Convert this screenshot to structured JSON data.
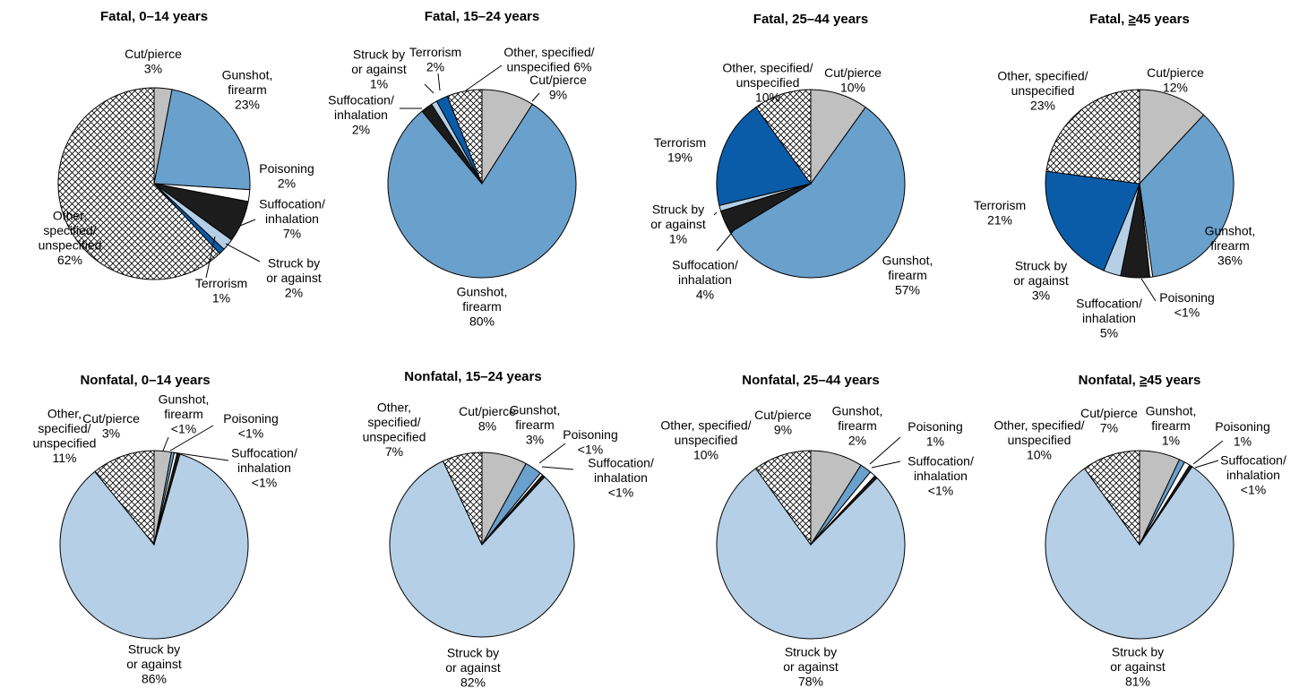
{
  "colors": {
    "Cut/pierce": "#c0c0c0",
    "Gunshot, firearm": "#6aa0cc",
    "Poisoning": "#ffffff",
    "Suffocation/inhalation": "#1c1c1c",
    "Struck by or against": "#b5cfe6",
    "Terrorism": "#0a5ca8",
    "Other, specified/unspecified": "hatch"
  },
  "chart_data": [
    {
      "type": "pie",
      "title": "Fatal, 0–14 years",
      "slices": [
        {
          "category": "Cut/pierce",
          "value": 3,
          "label_lines": [
            "Cut/pierce",
            "3%"
          ]
        },
        {
          "category": "Gunshot, firearm",
          "value": 23,
          "label_lines": [
            "Gunshot,",
            "firearm",
            "23%"
          ]
        },
        {
          "category": "Poisoning",
          "value": 2,
          "label_lines": [
            "Poisoning",
            "2%"
          ]
        },
        {
          "category": "Suffocation/inhalation",
          "value": 7,
          "label_lines": [
            "Suffocation/",
            "inhalation",
            "7%"
          ]
        },
        {
          "category": "Struck by or against",
          "value": 2,
          "label_lines": [
            "Struck by",
            "or against",
            "2%"
          ]
        },
        {
          "category": "Terrorism",
          "value": 1,
          "label_lines": [
            "Terrorism",
            "1%"
          ]
        },
        {
          "category": "Other, specified/unspecified",
          "value": 62,
          "label_lines": [
            "Other,",
            "specified/",
            "unspecified",
            "62%"
          ]
        }
      ]
    },
    {
      "type": "pie",
      "title": "Fatal, 15–24 years",
      "slices": [
        {
          "category": "Cut/pierce",
          "value": 9,
          "label_lines": [
            "Cut/pierce",
            "9%"
          ]
        },
        {
          "category": "Gunshot, firearm",
          "value": 80,
          "label_lines": [
            "Gunshot,",
            "firearm",
            "80%"
          ]
        },
        {
          "category": "Suffocation/inhalation",
          "value": 2,
          "label_lines": [
            "Suffocation/",
            "inhalation",
            "2%"
          ]
        },
        {
          "category": "Struck by or against",
          "value": 1,
          "label_lines": [
            "Struck by",
            "or against",
            "1%"
          ]
        },
        {
          "category": "Terrorism",
          "value": 2,
          "label_lines": [
            "Terrorism",
            "2%"
          ]
        },
        {
          "category": "Other, specified/unspecified",
          "value": 6,
          "label_lines": [
            "Other, specified/",
            "unspecified 6%"
          ]
        }
      ]
    },
    {
      "type": "pie",
      "title": "Fatal, 25–44 years",
      "slices": [
        {
          "category": "Cut/pierce",
          "value": 10,
          "label_lines": [
            "Cut/pierce",
            "10%"
          ]
        },
        {
          "category": "Gunshot, firearm",
          "value": 57,
          "label_lines": [
            "Gunshot,",
            "firearm",
            "57%"
          ]
        },
        {
          "category": "Suffocation/inhalation",
          "value": 4,
          "label_lines": [
            "Suffocation/",
            "inhalation",
            "4%"
          ]
        },
        {
          "category": "Struck by or against",
          "value": 1,
          "label_lines": [
            "Struck by",
            "or against",
            "1%"
          ]
        },
        {
          "category": "Terrorism",
          "value": 19,
          "label_lines": [
            "Terrorism",
            "19%"
          ]
        },
        {
          "category": "Other, specified/unspecified",
          "value": 10,
          "label_lines": [
            "Other, specified/",
            "unspecified",
            "10%"
          ]
        }
      ]
    },
    {
      "type": "pie",
      "title": "Fatal, ≥45 years",
      "title_parts": [
        "Fatal, ",
        "≥",
        "45 years"
      ],
      "slices": [
        {
          "category": "Cut/pierce",
          "value": 12,
          "label_lines": [
            "Cut/pierce",
            "12%"
          ]
        },
        {
          "category": "Gunshot, firearm",
          "value": 36,
          "label_lines": [
            "Gunshot,",
            "firearm",
            "36%"
          ]
        },
        {
          "category": "Poisoning",
          "value": 0.5,
          "label_lines": [
            "Poisoning",
            "<1%"
          ]
        },
        {
          "category": "Suffocation/inhalation",
          "value": 5,
          "label_lines": [
            "Suffocation/",
            "inhalation",
            "5%"
          ]
        },
        {
          "category": "Struck by or against",
          "value": 3,
          "label_lines": [
            "Struck by",
            "or against",
            "3%"
          ]
        },
        {
          "category": "Terrorism",
          "value": 21,
          "label_lines": [
            "Terrorism",
            "21%"
          ]
        },
        {
          "category": "Other, specified/unspecified",
          "value": 23,
          "label_lines": [
            "Other, specified/",
            "unspecified",
            "23%"
          ]
        }
      ]
    },
    {
      "type": "pie",
      "title": "Nonfatal, 0–14 years",
      "slices": [
        {
          "category": "Cut/pierce",
          "value": 3,
          "label_lines": [
            "Cut/pierce",
            "3%"
          ]
        },
        {
          "category": "Gunshot, firearm",
          "value": 0.5,
          "label_lines": [
            "Gunshot,",
            "firearm",
            "<1%"
          ]
        },
        {
          "category": "Poisoning",
          "value": 0.5,
          "label_lines": [
            "Poisoning",
            "<1%"
          ]
        },
        {
          "category": "Suffocation/inhalation",
          "value": 0.5,
          "label_lines": [
            "Suffocation/",
            "inhalation",
            "<1%"
          ]
        },
        {
          "category": "Struck by or against",
          "value": 86,
          "label_lines": [
            "Struck by",
            "or against",
            "86%"
          ]
        },
        {
          "category": "Other, specified/unspecified",
          "value": 11,
          "label_lines": [
            "Other,",
            "specified/",
            "unspecified",
            "11%"
          ]
        }
      ]
    },
    {
      "type": "pie",
      "title": "Nonfatal, 15–24 years",
      "slices": [
        {
          "category": "Cut/pierce",
          "value": 8,
          "label_lines": [
            "Cut/pierce",
            "8%"
          ]
        },
        {
          "category": "Gunshot, firearm",
          "value": 3,
          "label_lines": [
            "Gunshot,",
            "firearm",
            "3%"
          ]
        },
        {
          "category": "Poisoning",
          "value": 0.5,
          "label_lines": [
            "Poisoning",
            "<1%"
          ]
        },
        {
          "category": "Suffocation/inhalation",
          "value": 0.5,
          "label_lines": [
            "Suffocation/",
            "inhalation",
            "<1%"
          ]
        },
        {
          "category": "Struck by or against",
          "value": 82,
          "label_lines": [
            "Struck by",
            "or against",
            "82%"
          ]
        },
        {
          "category": "Other, specified/unspecified",
          "value": 7,
          "label_lines": [
            "Other,",
            "specified/",
            "unspecified",
            "7%"
          ]
        }
      ]
    },
    {
      "type": "pie",
      "title": "Nonfatal, 25–44 years",
      "slices": [
        {
          "category": "Cut/pierce",
          "value": 9,
          "label_lines": [
            "Cut/pierce",
            "9%"
          ]
        },
        {
          "category": "Gunshot, firearm",
          "value": 2,
          "label_lines": [
            "Gunshot,",
            "firearm",
            "2%"
          ]
        },
        {
          "category": "Poisoning",
          "value": 1,
          "label_lines": [
            "Poisoning",
            "1%"
          ]
        },
        {
          "category": "Suffocation/inhalation",
          "value": 0.5,
          "label_lines": [
            "Suffocation/",
            "inhalation",
            "<1%"
          ]
        },
        {
          "category": "Struck by or against",
          "value": 78,
          "label_lines": [
            "Struck by",
            "or against",
            "78%"
          ]
        },
        {
          "category": "Other, specified/unspecified",
          "value": 10,
          "label_lines": [
            "Other, specified/",
            "unspecified",
            "10%"
          ]
        }
      ]
    },
    {
      "type": "pie",
      "title": "Nonfatal, ≥45 years",
      "title_parts": [
        "Nonfatal, ",
        "≥",
        "45 years"
      ],
      "slices": [
        {
          "category": "Cut/pierce",
          "value": 7,
          "label_lines": [
            "Cut/pierce",
            "7%"
          ]
        },
        {
          "category": "Gunshot, firearm",
          "value": 1,
          "label_lines": [
            "Gunshot,",
            "firearm",
            "1%"
          ]
        },
        {
          "category": "Poisoning",
          "value": 1,
          "label_lines": [
            "Poisoning",
            "1%"
          ]
        },
        {
          "category": "Suffocation/inhalation",
          "value": 0.5,
          "label_lines": [
            "Suffocation/",
            "inhalation",
            "<1%"
          ]
        },
        {
          "category": "Struck by or against",
          "value": 81,
          "label_lines": [
            "Struck by",
            "or against",
            "81%"
          ]
        },
        {
          "category": "Other, specified/unspecified",
          "value": 10,
          "label_lines": [
            "Other, specified/",
            "unspecified",
            "10%"
          ]
        }
      ]
    }
  ]
}
